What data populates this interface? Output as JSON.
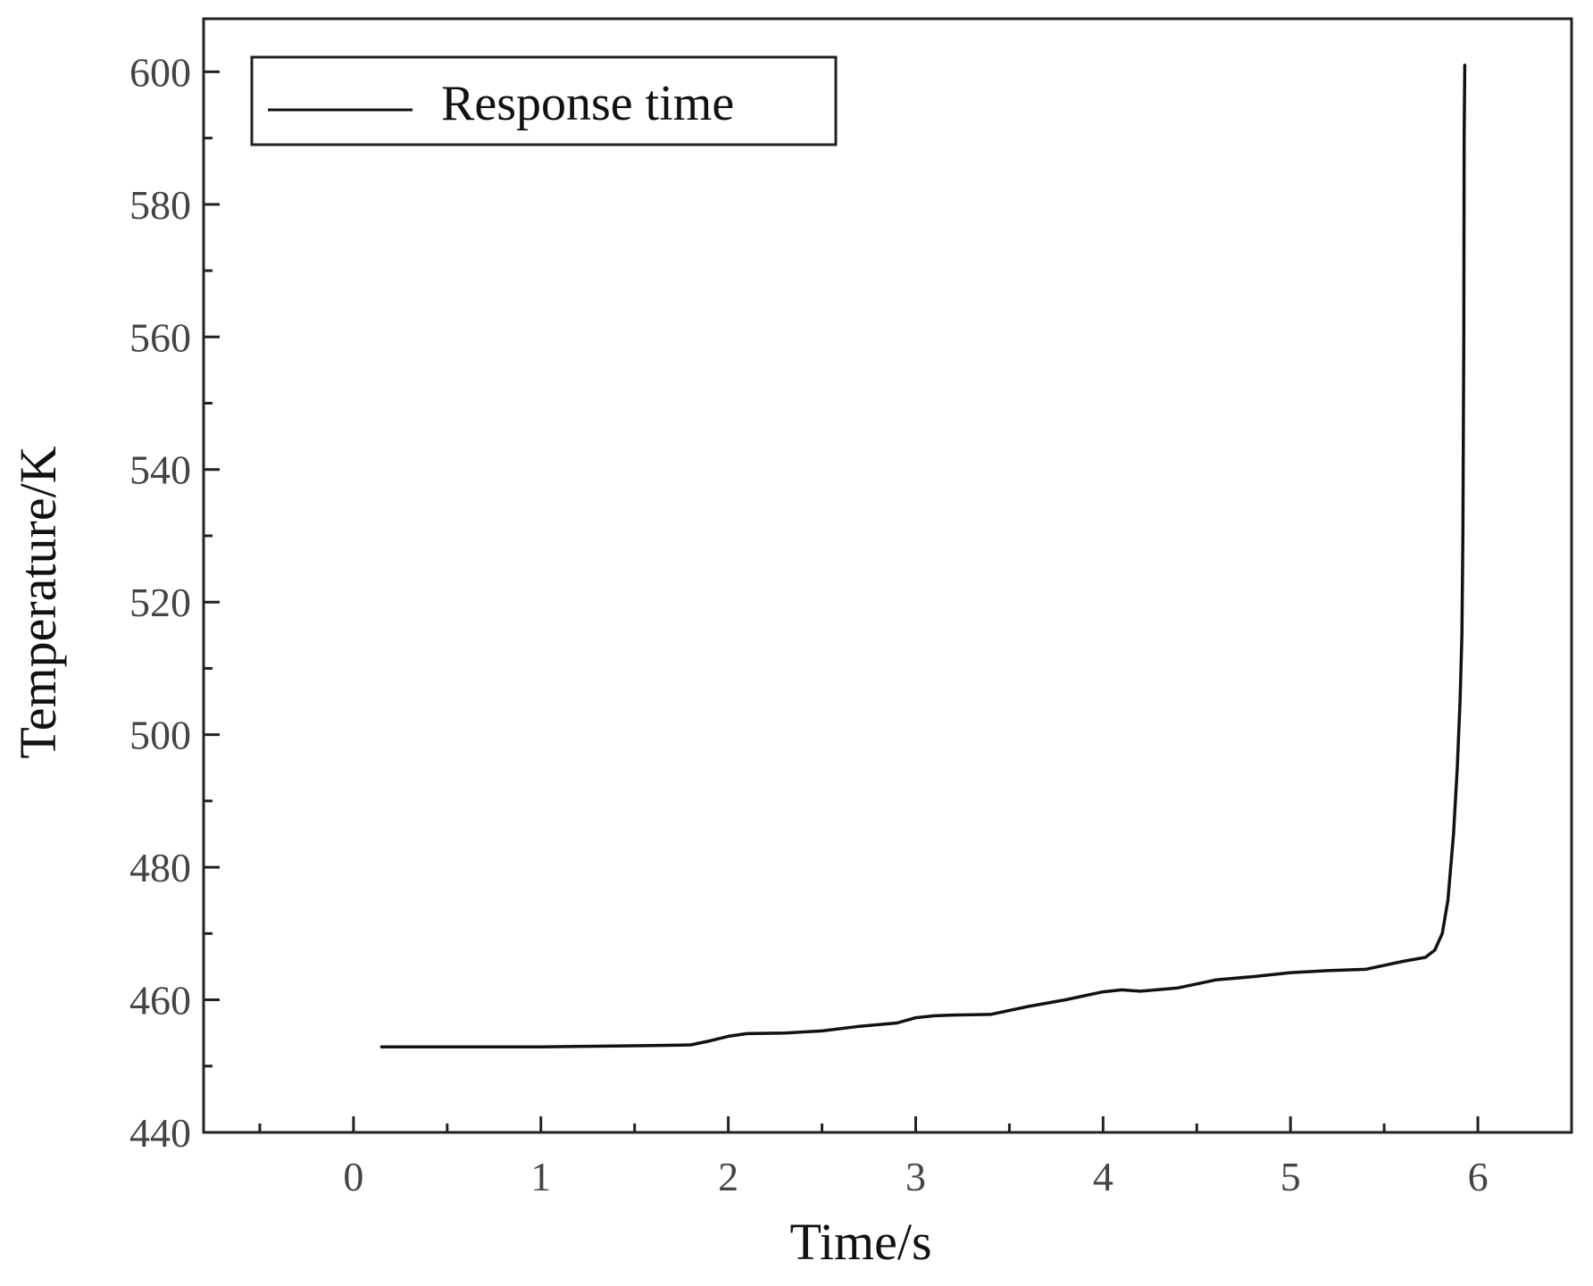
{
  "chart_data": {
    "type": "line",
    "xlabel": "Time/s",
    "ylabel": "Temperature/K",
    "xlim": [
      -0.8,
      6.5
    ],
    "ylim": [
      440,
      608
    ],
    "x_ticks": [
      0,
      1,
      2,
      3,
      4,
      5,
      6
    ],
    "y_ticks": [
      440,
      460,
      480,
      500,
      520,
      540,
      560,
      580,
      600
    ],
    "grid": false,
    "legend_position": "top-left",
    "series": [
      {
        "name": "Response time",
        "color": "#111111",
        "points": [
          [
            0.15,
            452.9
          ],
          [
            0.5,
            452.9
          ],
          [
            1.0,
            452.9
          ],
          [
            1.3,
            453.0
          ],
          [
            1.6,
            453.1
          ],
          [
            1.8,
            453.2
          ],
          [
            1.9,
            453.8
          ],
          [
            2.0,
            454.5
          ],
          [
            2.1,
            454.9
          ],
          [
            2.3,
            455.0
          ],
          [
            2.5,
            455.3
          ],
          [
            2.7,
            456.0
          ],
          [
            2.9,
            456.5
          ],
          [
            3.0,
            457.3
          ],
          [
            3.1,
            457.6
          ],
          [
            3.2,
            457.7
          ],
          [
            3.4,
            457.8
          ],
          [
            3.6,
            459.0
          ],
          [
            3.8,
            460.0
          ],
          [
            4.0,
            461.2
          ],
          [
            4.1,
            461.5
          ],
          [
            4.2,
            461.3
          ],
          [
            4.4,
            461.8
          ],
          [
            4.6,
            463.0
          ],
          [
            4.8,
            463.5
          ],
          [
            5.0,
            464.1
          ],
          [
            5.2,
            464.4
          ],
          [
            5.4,
            464.6
          ],
          [
            5.6,
            465.8
          ],
          [
            5.72,
            466.4
          ],
          [
            5.77,
            467.5
          ],
          [
            5.81,
            470.0
          ],
          [
            5.84,
            475.0
          ],
          [
            5.87,
            485.0
          ],
          [
            5.89,
            495.0
          ],
          [
            5.905,
            505.0
          ],
          [
            5.915,
            515.0
          ],
          [
            5.92,
            530.0
          ],
          [
            5.925,
            560.0
          ],
          [
            5.927,
            590.0
          ],
          [
            5.93,
            601.0
          ]
        ]
      }
    ]
  }
}
